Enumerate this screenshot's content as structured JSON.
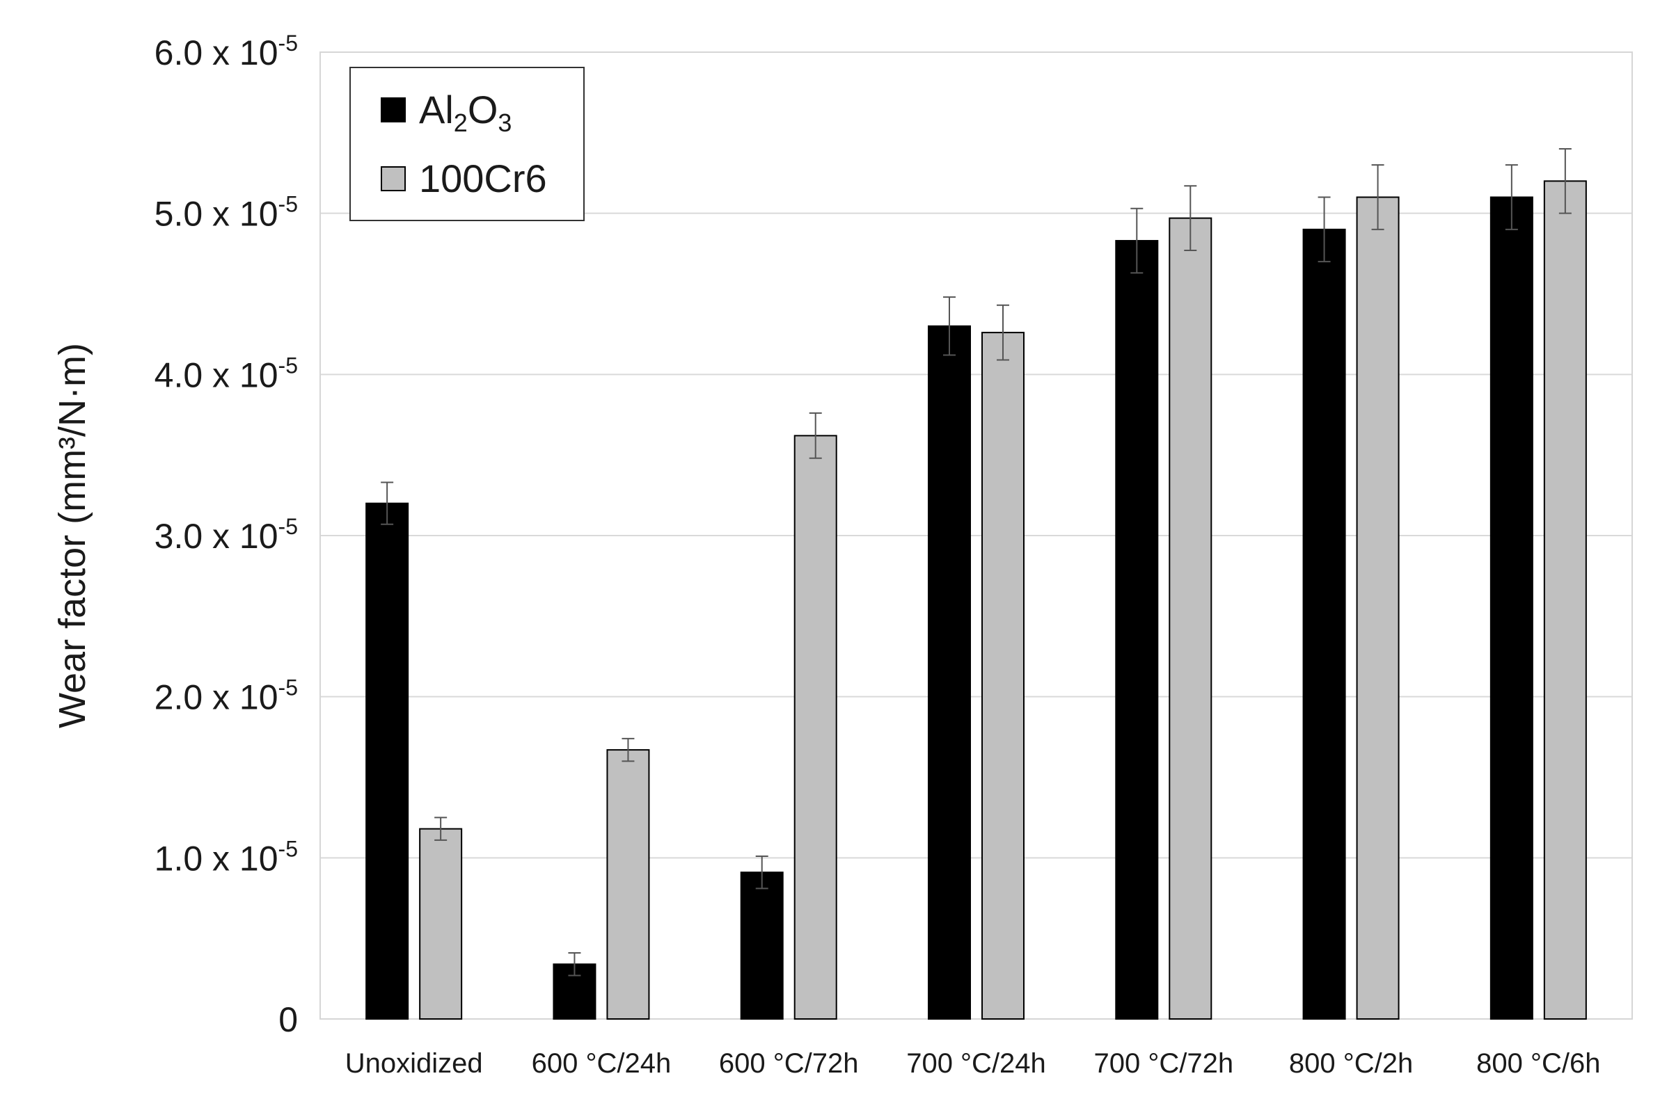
{
  "chart_data": {
    "type": "bar",
    "title": "",
    "ylabel": "Wear factor (mm³/N·m)",
    "xlabel": "",
    "ylim": [
      0,
      6e-05
    ],
    "yticks": [
      {
        "value": 0,
        "mantissa": "0",
        "exponent": ""
      },
      {
        "value": 1e-05,
        "mantissa": "1.0 x 10",
        "exponent": "-5"
      },
      {
        "value": 2e-05,
        "mantissa": "2.0 x 10",
        "exponent": "-5"
      },
      {
        "value": 3e-05,
        "mantissa": "3.0 x 10",
        "exponent": "-5"
      },
      {
        "value": 4e-05,
        "mantissa": "4.0 x 10",
        "exponent": "-5"
      },
      {
        "value": 5e-05,
        "mantissa": "5.0 x 10",
        "exponent": "-5"
      },
      {
        "value": 6e-05,
        "mantissa": "6.0 x 10",
        "exponent": "-5"
      }
    ],
    "grid": true,
    "legend_position": "top-left",
    "categories": [
      "Unoxidized",
      "600 °C/24h",
      "600 °C/72h",
      "700 °C/24h",
      "700 °C/72h",
      "800 °C/2h",
      "800 °C/6h"
    ],
    "series": [
      {
        "name": "Al2O3",
        "legend_parts": [
          "Al",
          "2",
          "O",
          "3"
        ],
        "color": "#000000",
        "values": [
          3.2e-05,
          3.4e-06,
          9.1e-06,
          4.3e-05,
          4.83e-05,
          4.9e-05,
          5.1e-05
        ],
        "errors": [
          1.3e-06,
          7e-07,
          1e-06,
          1.8e-06,
          2e-06,
          2e-06,
          2e-06
        ]
      },
      {
        "name": "100Cr6",
        "legend_parts": [
          "100Cr6"
        ],
        "color": "#c0c0c0",
        "values": [
          1.18e-05,
          1.67e-05,
          3.62e-05,
          4.26e-05,
          4.97e-05,
          5.1e-05,
          5.2e-05
        ],
        "errors": [
          7e-07,
          7e-07,
          1.4e-06,
          1.7e-06,
          2e-06,
          2e-06,
          2e-06
        ]
      }
    ]
  }
}
